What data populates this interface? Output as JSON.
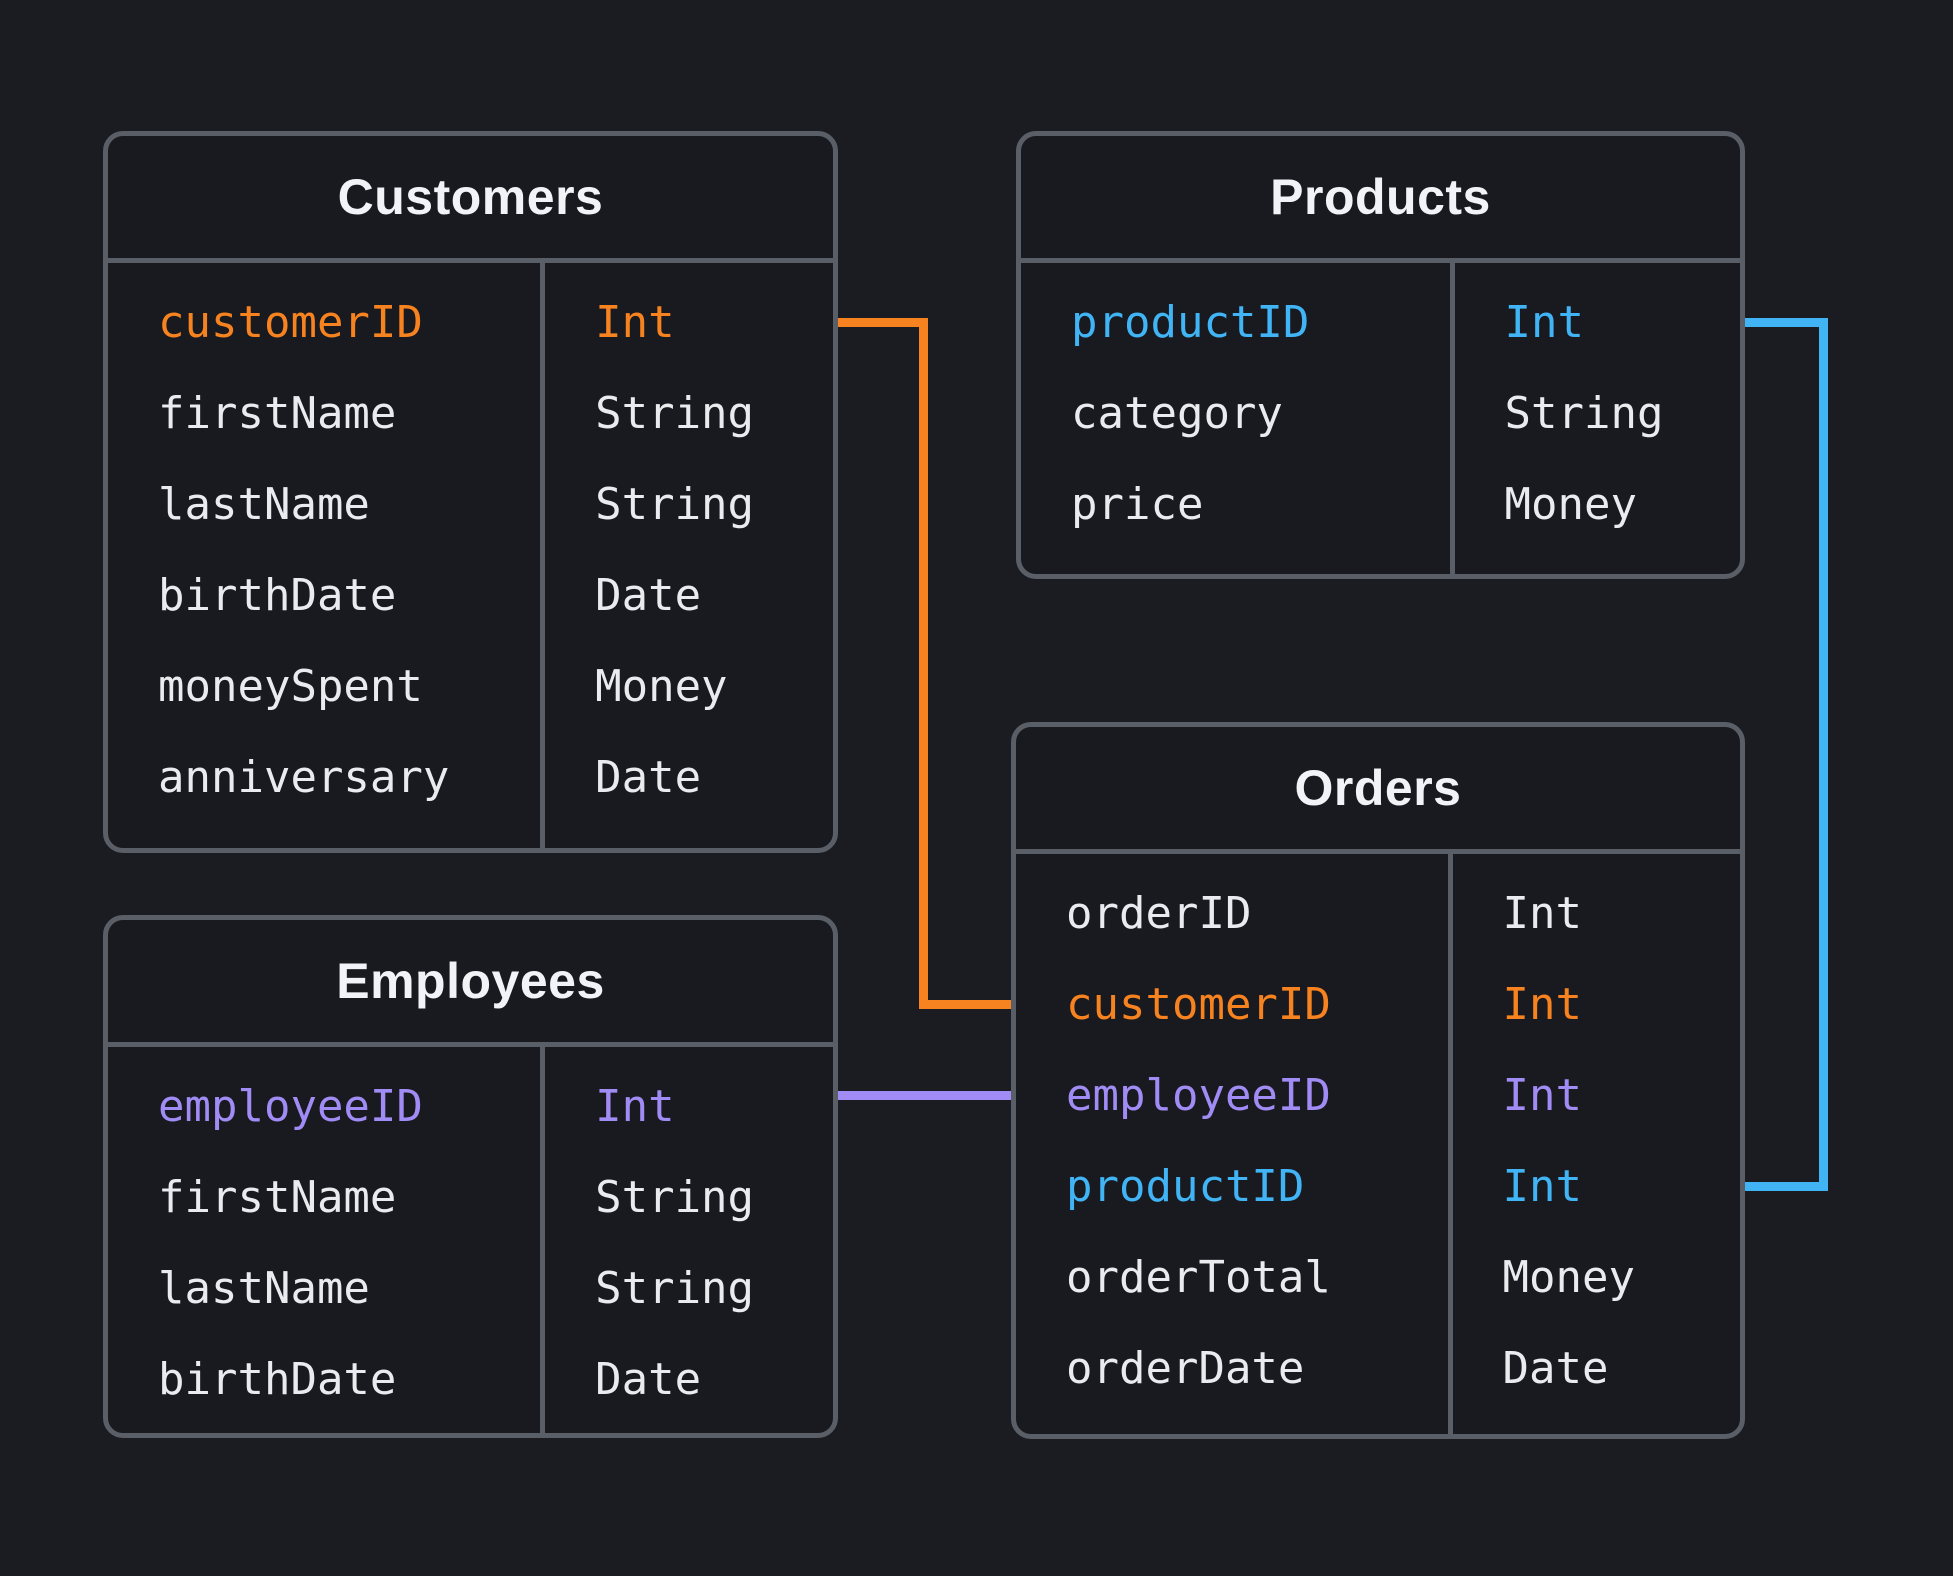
{
  "canvas": {
    "background": "#1B1C21",
    "table_background": "#191A1F",
    "border_color": "#5A5F67",
    "field_text_color": "#E9EBEE",
    "title_text_color": "#F1F3F6"
  },
  "highlight_colors": {
    "orange": "#F6831F",
    "blue": "#41B4F6",
    "purple": "#A18BF4"
  },
  "tables": [
    {
      "id": "customers",
      "title": "Customers",
      "fields": [
        {
          "name": "customerID",
          "type": "Int",
          "highlight": "orange"
        },
        {
          "name": "firstName",
          "type": "String",
          "highlight": null
        },
        {
          "name": "lastName",
          "type": "String",
          "highlight": null
        },
        {
          "name": "birthDate",
          "type": "Date",
          "highlight": null
        },
        {
          "name": "moneySpent",
          "type": "Money",
          "highlight": null
        },
        {
          "name": "anniversary",
          "type": "Date",
          "highlight": null
        }
      ]
    },
    {
      "id": "products",
      "title": "Products",
      "fields": [
        {
          "name": "productID",
          "type": "Int",
          "highlight": "blue"
        },
        {
          "name": "category",
          "type": "String",
          "highlight": null
        },
        {
          "name": "price",
          "type": "Money",
          "highlight": null
        }
      ]
    },
    {
      "id": "employees",
      "title": "Employees",
      "fields": [
        {
          "name": "employeeID",
          "type": "Int",
          "highlight": "purple"
        },
        {
          "name": "firstName",
          "type": "String",
          "highlight": null
        },
        {
          "name": "lastName",
          "type": "String",
          "highlight": null
        },
        {
          "name": "birthDate",
          "type": "Date",
          "highlight": null
        }
      ]
    },
    {
      "id": "orders",
      "title": "Orders",
      "fields": [
        {
          "name": "orderID",
          "type": "Int",
          "highlight": null
        },
        {
          "name": "customerID",
          "type": "Int",
          "highlight": "orange"
        },
        {
          "name": "employeeID",
          "type": "Int",
          "highlight": "purple"
        },
        {
          "name": "productID",
          "type": "Int",
          "highlight": "blue"
        },
        {
          "name": "orderTotal",
          "type": "Money",
          "highlight": null
        },
        {
          "name": "orderDate",
          "type": "Date",
          "highlight": null
        }
      ]
    }
  ],
  "relations": [
    {
      "from": "Customers.customerID",
      "to": "Orders.customerID",
      "color_key": "orange"
    },
    {
      "from": "Employees.employeeID",
      "to": "Orders.employeeID",
      "color_key": "purple"
    },
    {
      "from": "Products.productID",
      "to": "Orders.productID",
      "color_key": "blue"
    }
  ]
}
